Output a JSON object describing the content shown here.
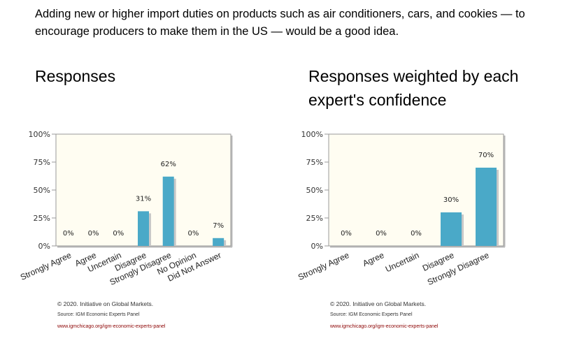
{
  "question": "Adding new or higher import duties on products such as air conditioners, cars, and cookies — to encourage producers to make them in the US — would be a good idea.",
  "headings": {
    "left": "Responses",
    "right": "Responses weighted by each expert's confidence"
  },
  "colors": {
    "bar": "#4aa9c8",
    "plot_bg": "#fffdf2",
    "frame": "#999999",
    "link": "#8b0000"
  },
  "chart_data": [
    {
      "type": "bar",
      "categories": [
        "Strongly Agree",
        "Agree",
        "Uncertain",
        "Disagree",
        "Strongly Disagree",
        "No Opinion",
        "Did Not Answer"
      ],
      "values": [
        0,
        0,
        0,
        31,
        62,
        0,
        7
      ],
      "data_labels": [
        "0%",
        "0%",
        "0%",
        "31%",
        "62%",
        "0%",
        "7%"
      ],
      "yticks": [
        "0%",
        "25%",
        "50%",
        "75%",
        "100%"
      ],
      "ylim": [
        0,
        100
      ],
      "grid": false,
      "legend": "none"
    },
    {
      "type": "bar",
      "categories": [
        "Strongly Agree",
        "Agree",
        "Uncertain",
        "Disagree",
        "Strongly Disagree"
      ],
      "values": [
        0,
        0,
        0,
        30,
        70
      ],
      "data_labels": [
        "0%",
        "0%",
        "0%",
        "30%",
        "70%"
      ],
      "yticks": [
        "0%",
        "25%",
        "50%",
        "75%",
        "100%"
      ],
      "ylim": [
        0,
        100
      ],
      "grid": false,
      "legend": "none"
    }
  ],
  "footer": {
    "copyright": "© 2020. Initiative on Global Markets.",
    "source": "Source: IGM Economic Experts Panel",
    "url": "www.igmchicago.org/igm-economic-experts-panel"
  }
}
